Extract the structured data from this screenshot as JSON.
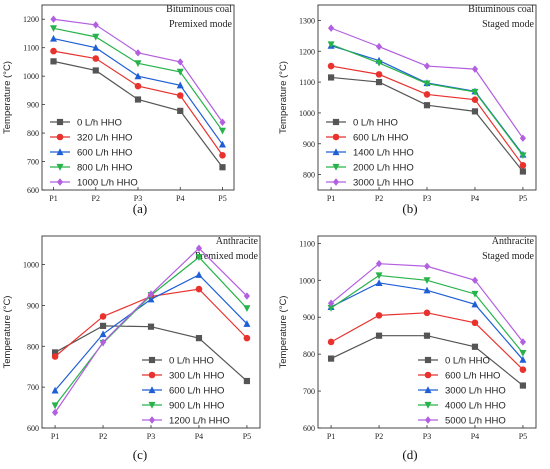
{
  "chart_data": [
    {
      "panel_label": "(a)",
      "type": "line",
      "annotation": [
        "Bituminous coal",
        "Premixed mode"
      ],
      "ylabel": "Temperature (°C)",
      "xlabel": "",
      "categories": [
        "P1",
        "P2",
        "P3",
        "P4",
        "P5"
      ],
      "ylim": [
        600,
        1250
      ],
      "yticks": [
        600,
        700,
        800,
        900,
        1000,
        1100,
        1200
      ],
      "legend_position": "bottom-left",
      "series": [
        {
          "name": "0 L/h HHO",
          "color": "#555555",
          "marker": "square",
          "values": [
            1052,
            1020,
            918,
            878,
            680
          ]
        },
        {
          "name": "320 L/h HHO",
          "color": "#e8322e",
          "marker": "circle",
          "values": [
            1088,
            1062,
            965,
            932,
            722
          ]
        },
        {
          "name": "600 L/h HHO",
          "color": "#1f5fd6",
          "marker": "triangle",
          "values": [
            1132,
            1100,
            1000,
            968,
            760
          ]
        },
        {
          "name": "800 L/h HHO",
          "color": "#27b24a",
          "marker": "triangle-down",
          "values": [
            1168,
            1138,
            1045,
            1015,
            808
          ]
        },
        {
          "name": "1000 L/h HHO",
          "color": "#b25fe0",
          "marker": "diamond",
          "values": [
            1200,
            1180,
            1082,
            1050,
            838
          ]
        }
      ]
    },
    {
      "panel_label": "(b)",
      "type": "line",
      "annotation": [
        "Bituminous coal",
        "Staged mode"
      ],
      "ylabel": "Temperature (°C)",
      "xlabel": "",
      "categories": [
        "P1",
        "P2",
        "P3",
        "P4",
        "P5"
      ],
      "ylim": [
        750,
        1350
      ],
      "yticks": [
        800,
        900,
        1000,
        1100,
        1200,
        1300
      ],
      "legend_position": "bottom-left",
      "series": [
        {
          "name": "0 L/h HHO",
          "color": "#555555",
          "marker": "square",
          "values": [
            1115,
            1100,
            1025,
            1005,
            810
          ]
        },
        {
          "name": "600 L/h HHO",
          "color": "#e8322e",
          "marker": "circle",
          "values": [
            1152,
            1125,
            1060,
            1043,
            830
          ]
        },
        {
          "name": "1400 L/h HHO",
          "color": "#1f5fd6",
          "marker": "triangle",
          "values": [
            1218,
            1170,
            1097,
            1070,
            865
          ]
        },
        {
          "name": "2000 L/h HHO",
          "color": "#27b24a",
          "marker": "triangle-down",
          "values": [
            1222,
            1162,
            1095,
            1068,
            862
          ]
        },
        {
          "name": "3000 L/h HHO",
          "color": "#b25fe0",
          "marker": "diamond",
          "values": [
            1275,
            1215,
            1152,
            1142,
            918
          ]
        }
      ]
    },
    {
      "panel_label": "(c)",
      "type": "line",
      "annotation": [
        "Anthracite",
        "Premixed mode"
      ],
      "ylabel": "Temperature (°C)",
      "xlabel": "",
      "categories": [
        "P1",
        "P2",
        "P3",
        "P4",
        "P5"
      ],
      "ylim": [
        600,
        1070
      ],
      "yticks": [
        600,
        700,
        800,
        900,
        1000
      ],
      "legend_position": "bottom-right",
      "series": [
        {
          "name": "0 L/h HHO",
          "color": "#555555",
          "marker": "square",
          "values": [
            785,
            850,
            848,
            820,
            715
          ]
        },
        {
          "name": "300 L/h HHO",
          "color": "#e8322e",
          "marker": "circle",
          "values": [
            775,
            873,
            922,
            940,
            820
          ]
        },
        {
          "name": "600 L/h HHO",
          "color": "#1f5fd6",
          "marker": "triangle",
          "values": [
            692,
            830,
            915,
            975,
            855
          ]
        },
        {
          "name": "900 L/h HHO",
          "color": "#27b24a",
          "marker": "triangle-down",
          "values": [
            655,
            808,
            925,
            1018,
            893
          ]
        },
        {
          "name": "1200 L/h HHO",
          "color": "#b25fe0",
          "marker": "diamond",
          "values": [
            638,
            810,
            928,
            1040,
            923
          ]
        }
      ]
    },
    {
      "panel_label": "(d)",
      "type": "line",
      "annotation": [
        "Anthracite",
        "Staged mode"
      ],
      "ylabel": "Temperature (°C)",
      "xlabel": "",
      "categories": [
        "P1",
        "P2",
        "P3",
        "P4",
        "P5"
      ],
      "ylim": [
        600,
        1120
      ],
      "yticks": [
        600,
        700,
        800,
        900,
        1000,
        1100
      ],
      "legend_position": "bottom-right",
      "series": [
        {
          "name": "0 L/h HHO",
          "color": "#555555",
          "marker": "square",
          "values": [
            788,
            850,
            850,
            820,
            715
          ]
        },
        {
          "name": "600 L/h HHO",
          "color": "#e8322e",
          "marker": "circle",
          "values": [
            833,
            905,
            912,
            885,
            758
          ]
        },
        {
          "name": "3000 L/h HHO",
          "color": "#1f5fd6",
          "marker": "triangle",
          "values": [
            928,
            993,
            973,
            935,
            785
          ]
        },
        {
          "name": "4000 L/h HHO",
          "color": "#27b24a",
          "marker": "triangle-down",
          "values": [
            925,
            1013,
            1000,
            963,
            803
          ]
        },
        {
          "name": "5000 L/h HHO",
          "color": "#b25fe0",
          "marker": "diamond",
          "values": [
            938,
            1045,
            1038,
            1000,
            833
          ]
        }
      ]
    }
  ]
}
